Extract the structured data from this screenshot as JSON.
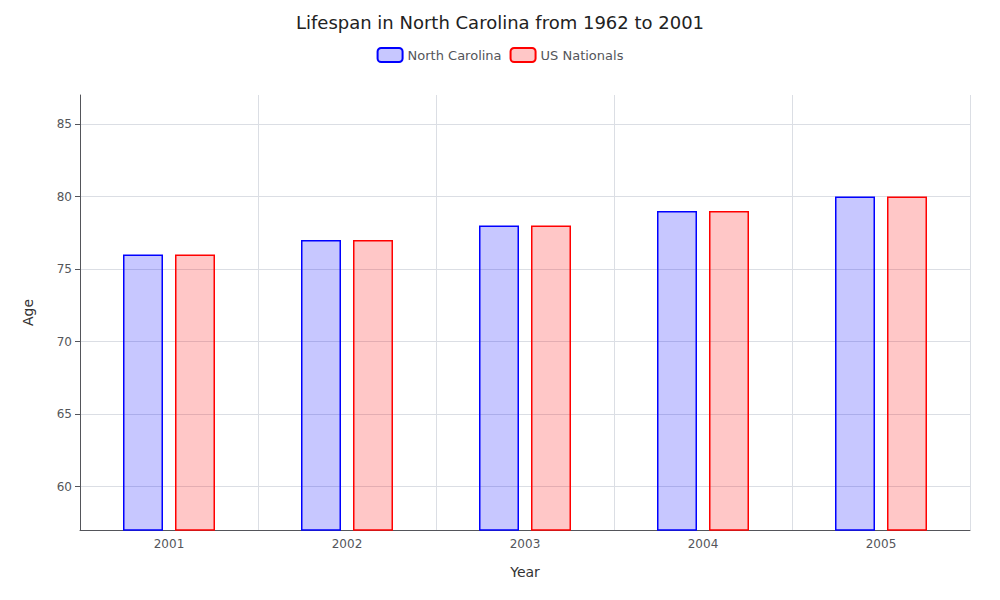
{
  "chart_data": {
    "type": "bar",
    "title": "Lifespan in North Carolina from 1962 to 2001",
    "x_label": "Year",
    "y_label": "Age",
    "categories": [
      "2001",
      "2002",
      "2003",
      "2004",
      "2005"
    ],
    "series": [
      {
        "name": "North Carolina",
        "color": "blue",
        "values": [
          76,
          77,
          78,
          79,
          80
        ]
      },
      {
        "name": "US Nationals",
        "color": "red",
        "values": [
          76,
          77,
          78,
          79,
          80
        ]
      }
    ],
    "ylim": [
      57,
      87
    ],
    "yticks": [
      60,
      65,
      70,
      75,
      80,
      85
    ],
    "grid": true,
    "legend": "top"
  }
}
